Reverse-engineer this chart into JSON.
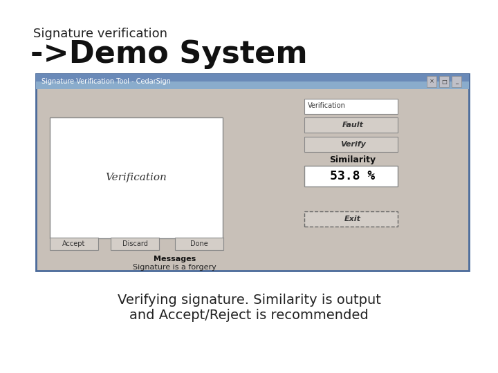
{
  "title_small": "Signature verification",
  "title_large": "->Demo System",
  "subtitle": "Verifying signature. Similarity is output\nand Accept/Reject is recommended",
  "bg_color": "#ffffff",
  "window_bg": "#c8c0b8",
  "window_title_bar_color": "#6a8ab8",
  "window_title_text": "Signature Verification Tool - CedarSign",
  "sig_box_text": "Verification",
  "sig_handwriting": "Verification",
  "button_labels": [
    "Accept",
    "Discard",
    "Done"
  ],
  "right_labels": [
    "Verification",
    "Fault",
    "Verify"
  ],
  "similarity_label": "Similarity",
  "similarity_value": "53.8 %",
  "similarity_box_color": "#ffffff",
  "similarity_text_color": "#000000",
  "messages_label": "Messages",
  "messages_text": "Signature is a forgery",
  "exit_button": "Exit",
  "title_small_fontsize": 13,
  "title_large_fontsize": 32,
  "subtitle_fontsize": 14
}
